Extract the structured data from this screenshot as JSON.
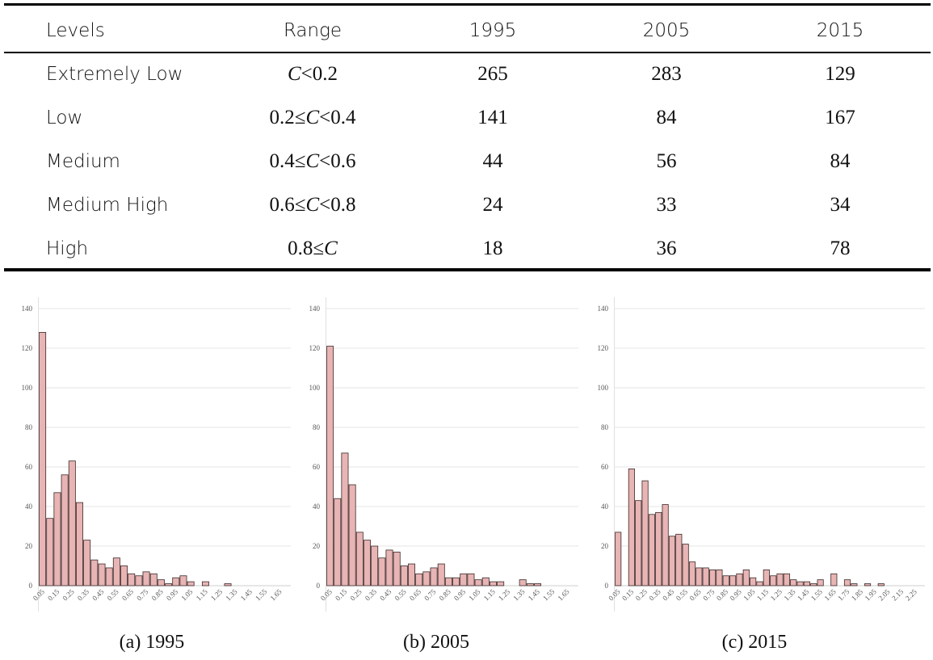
{
  "table": {
    "header": [
      "Levels",
      "Range",
      "1995",
      "2005",
      "2015"
    ],
    "rows": [
      {
        "level": "Extremely Low",
        "range": "C<0.2",
        "v1995": "265",
        "v2005": "283",
        "v2015": "129"
      },
      {
        "level": "Low",
        "range": "0.2≤C<0.4",
        "v1995": "141",
        "v2005": "84",
        "v2015": "167"
      },
      {
        "level": "Medium",
        "range": "0.4≤C<0.6",
        "v1995": "44",
        "v2005": "56",
        "v2015": "84"
      },
      {
        "level": "Medium High",
        "range": "0.6≤C<0.8",
        "v1995": "24",
        "v2005": "33",
        "v2015": "34"
      },
      {
        "level": "High",
        "range": "0.8≤C",
        "v1995": "18",
        "v2005": "36",
        "v2015": "78"
      }
    ]
  },
  "colors": {
    "bar_fill": "#e8b4b4",
    "bar_stroke": "#3a2a2a",
    "grid": "#e4e4e4",
    "text": "#111111"
  },
  "chart_data": [
    {
      "type": "bar",
      "caption": "(a) 1995",
      "ylim": [
        0,
        140
      ],
      "yticks": [
        0,
        20,
        40,
        60,
        80,
        100,
        120,
        140
      ],
      "bin_width": 0.05,
      "x_labels": [
        "0.05",
        "0.15",
        "0.25",
        "0.35",
        "0.45",
        "0.55",
        "0.65",
        "0.75",
        "0.85",
        "0.95",
        "1.05",
        "1.15",
        "1.25",
        "1.35",
        "1.45",
        "1.55",
        "1.65"
      ],
      "values": [
        128,
        34,
        47,
        56,
        63,
        42,
        23,
        13,
        11,
        9,
        14,
        10,
        6,
        5,
        7,
        6,
        3,
        1,
        4,
        5,
        2,
        0,
        2,
        0,
        0,
        1,
        0,
        0,
        0,
        0,
        0,
        0,
        0,
        0
      ],
      "grid": true
    },
    {
      "type": "bar",
      "caption": "(b) 2005",
      "ylim": [
        0,
        140
      ],
      "yticks": [
        0,
        20,
        40,
        60,
        80,
        100,
        120,
        140
      ],
      "bin_width": 0.05,
      "x_labels": [
        "0.05",
        "0.15",
        "0.25",
        "0.35",
        "0.45",
        "0.55",
        "0.65",
        "0.75",
        "0.85",
        "0.95",
        "1.05",
        "1.15",
        "1.25",
        "1.35",
        "1.45",
        "1.55",
        "1.65"
      ],
      "values": [
        121,
        44,
        67,
        51,
        27,
        23,
        20,
        14,
        18,
        17,
        10,
        11,
        6,
        7,
        9,
        11,
        4,
        4,
        6,
        6,
        3,
        4,
        2,
        2,
        0,
        0,
        3,
        1,
        1,
        0,
        0,
        0,
        0,
        0
      ],
      "grid": true
    },
    {
      "type": "bar",
      "caption": "(c) 2015",
      "ylim": [
        0,
        140
      ],
      "yticks": [
        0,
        20,
        40,
        60,
        80,
        100,
        120,
        140
      ],
      "bin_width": 0.05,
      "x_labels": [
        "0.05",
        "0.15",
        "0.25",
        "0.35",
        "0.45",
        "0.55",
        "0.65",
        "0.75",
        "0.85",
        "0.95",
        "1.05",
        "1.15",
        "1.25",
        "1.35",
        "1.45",
        "1.55",
        "1.65",
        "1.75",
        "1.85",
        "1.95",
        "2.05",
        "2.15",
        "2.25"
      ],
      "values": [
        27,
        0,
        59,
        43,
        53,
        36,
        37,
        41,
        25,
        26,
        21,
        12,
        9,
        9,
        8,
        8,
        5,
        5,
        6,
        8,
        4,
        2,
        8,
        5,
        6,
        6,
        3,
        2,
        2,
        1,
        3,
        0,
        6,
        0,
        3,
        1,
        0,
        1,
        0,
        1,
        0,
        0,
        0,
        0,
        0,
        0
      ],
      "grid": true
    }
  ]
}
